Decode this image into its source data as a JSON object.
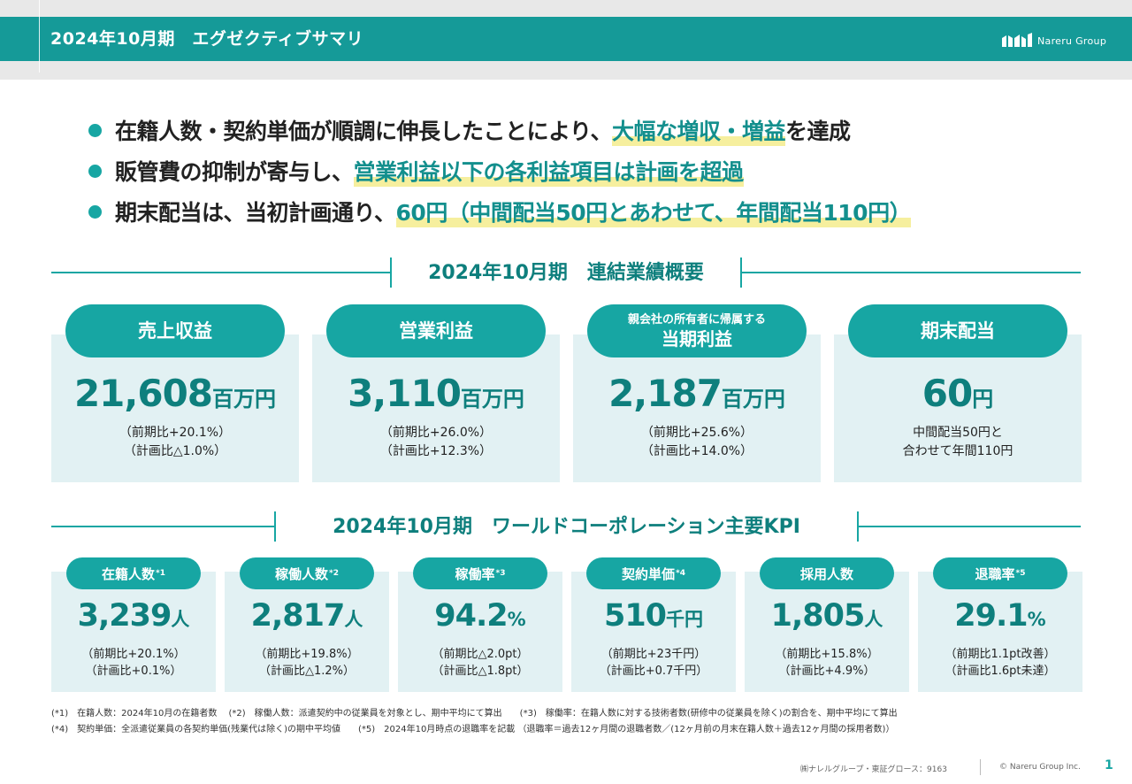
{
  "header": {
    "title": "2024年10月期　エグゼクティブサマリ",
    "logo_text": "Nareru Group"
  },
  "bullets": [
    {
      "pre": "在籍人数・契約単価が順調に伸長したことにより、",
      "hl1": "大幅な増収・増益",
      "mid": "を達成",
      "hl2": "",
      "mid2": "",
      "hl3": "",
      "post": ""
    },
    {
      "pre": "販管費の抑制が寄与し、",
      "hl1": "営業利益以下の各利益項目は計画を超過",
      "mid": "",
      "hl2": "",
      "mid2": "",
      "hl3": "",
      "post": ""
    },
    {
      "pre": "期末配当は、当初計画通り、",
      "hl1": "60円（中間配当50円とあわせて、年間配当110円）",
      "mid": "",
      "hl2": "",
      "mid2": "",
      "hl3": "",
      "post": ""
    }
  ],
  "section1": {
    "title": "2024年10月期　連結業績概要",
    "cards": [
      {
        "label_small": "",
        "label": "売上収益",
        "value": "21,608",
        "unit": "百万円",
        "sub1": "（前期比+20.1%）",
        "sub2": "（計画比△1.0%）"
      },
      {
        "label_small": "",
        "label": "営業利益",
        "value": "3,110",
        "unit": "百万円",
        "sub1": "（前期比+26.0%）",
        "sub2": "（計画比+12.3%）"
      },
      {
        "label_small": "親会社の所有者に帰属する",
        "label": "当期利益",
        "value": "2,187",
        "unit": "百万円",
        "sub1": "（前期比+25.6%）",
        "sub2": "（計画比+14.0%）"
      },
      {
        "label_small": "",
        "label": "期末配当",
        "value": "60",
        "unit": "円",
        "sub1": "中間配当50円と",
        "sub2": "合わせて年間110円"
      }
    ]
  },
  "section2": {
    "title": "2024年10月期　ワールドコーポレーション主要KPI",
    "cards": [
      {
        "label": "在籍人数",
        "note": "*1",
        "value": "3,239",
        "unit": "人",
        "sub1": "（前期比+20.1%）",
        "sub2": "（計画比+0.1%）"
      },
      {
        "label": "稼働人数",
        "note": "*2",
        "value": "2,817",
        "unit": "人",
        "sub1": "（前期比+19.8%）",
        "sub2": "（計画比△1.2%）"
      },
      {
        "label": "稼働率",
        "note": "*3",
        "value": "94.2",
        "unit": "%",
        "sub1": "（前期比△2.0pt）",
        "sub2": "（計画比△1.8pt）"
      },
      {
        "label": "契約単価",
        "note": "*4",
        "value": "510",
        "unit": "千円",
        "sub1": "（前期比+23千円）",
        "sub2": "（計画比+0.7千円）"
      },
      {
        "label": "採用人数",
        "note": "",
        "value": "1,805",
        "unit": "人",
        "sub1": "（前期比+15.8%）",
        "sub2": "（計画比+4.9%）"
      },
      {
        "label": "退職率",
        "note": "*5",
        "value": "29.1",
        "unit": "%",
        "sub1": "（前期比1.1pt改善）",
        "sub2": "（計画比1.6pt未達）"
      }
    ]
  },
  "notes": [
    "(*1)　在籍人数：2024年10月の在籍者数　 (*2)　稼働人数：派遣契約中の従業員を対象とし、期中平均にて算出　　(*3)　稼働率：在籍人数に対する技術者数(研修中の従業員を除く)の割合を、期中平均にて算出",
    "(*4)　契約単価：全派遣従業員の各契約単価(残業代は除く)の期中平均値　　(*5)　2024年10月時点の退職率を記載 （退職率＝過去12ヶ月間の退職者数／(12ヶ月前の月末在籍人数＋過去12ヶ月間の採用者数)）"
  ],
  "footer": {
    "company": "㈱ナレルグループ・東証グロース：9163",
    "copyright": "© Nareru Group Inc.",
    "page": "1"
  },
  "colors": {
    "teal": "#17a6a3",
    "teal_dark": "#0e7f7d",
    "card_bg": "#e2f1f3",
    "highlight": "#f6ef9e"
  }
}
